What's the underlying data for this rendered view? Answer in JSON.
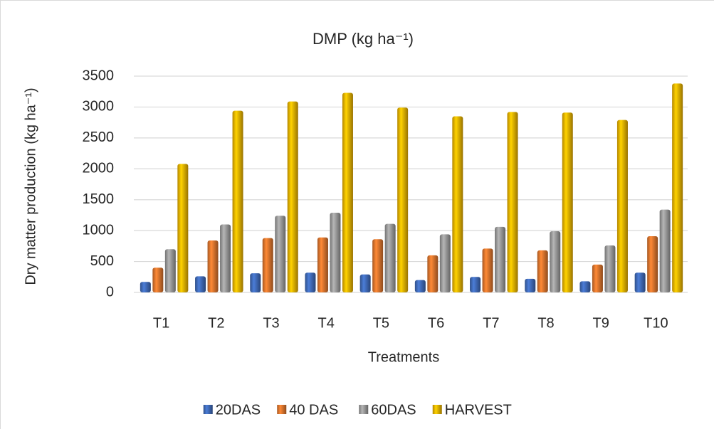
{
  "chart_data": {
    "type": "bar",
    "title": "DMP (kg ha⁻¹)",
    "y_label": "Dry matter production (kg ha⁻¹)",
    "x_label": "Treatments",
    "categories": [
      "T1",
      "T2",
      "T3",
      "T4",
      "T5",
      "T6",
      "T7",
      "T8",
      "T9",
      "T10"
    ],
    "series": [
      {
        "name": "20DAS",
        "color": "#4472c4",
        "values": [
          170,
          260,
          310,
          320,
          290,
          200,
          250,
          220,
          180,
          320
        ]
      },
      {
        "name": "40 DAS",
        "color": "#ed7d31",
        "values": [
          400,
          840,
          880,
          890,
          860,
          600,
          710,
          680,
          450,
          910
        ]
      },
      {
        "name": "60DAS",
        "color": "#a5a5a5",
        "values": [
          700,
          1100,
          1240,
          1290,
          1110,
          940,
          1060,
          990,
          760,
          1340
        ]
      },
      {
        "name": "HARVEST",
        "color": "#ffc000",
        "values": [
          2080,
          2940,
          3090,
          3230,
          2990,
          2850,
          2920,
          2910,
          2790,
          3380
        ]
      }
    ],
    "ylim": [
      0,
      3500
    ],
    "yticks": [
      0,
      500,
      1000,
      1500,
      2000,
      2500,
      3000,
      3500
    ],
    "grid": true,
    "legend": "bottom"
  }
}
